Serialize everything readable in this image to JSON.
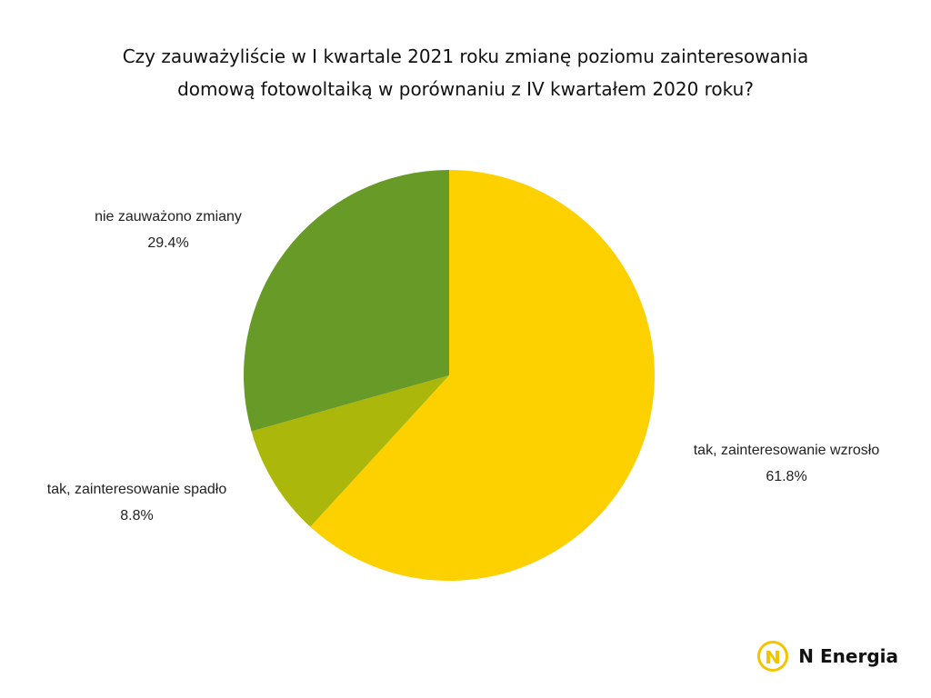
{
  "chart_data": {
    "type": "pie",
    "title": "Czy zauważyliście w I kwartale 2021 roku zmianę poziomu zainteresowania domową fotowoltaiką w porównaniu z IV kwartałem 2020 roku?",
    "title_lines": [
      "Czy zauważyliście w I kwartale 2021 roku zmianę poziomu zainteresowania",
      "domową fotowoltaiką w porównaniu z IV kwartałem 2020 roku?"
    ],
    "slices": [
      {
        "label": "tak, zainteresowanie wzrosło",
        "value": 61.8,
        "value_label": "61.8%",
        "color": "#FDD000"
      },
      {
        "label": "tak, zainteresowanie spadło",
        "value": 8.8,
        "value_label": "8.8%",
        "color": "#ABB80B"
      },
      {
        "label": "nie zauważono zmiany",
        "value": 29.4,
        "value_label": "29.4%",
        "color": "#689A28"
      }
    ],
    "start_angle": "12 o'clock",
    "direction": "clockwise",
    "legend": "none (labels placed outside slices)"
  },
  "brand": {
    "name": "N Energia",
    "icon": "n-energia-logo-icon",
    "accent": "#F5C400"
  }
}
